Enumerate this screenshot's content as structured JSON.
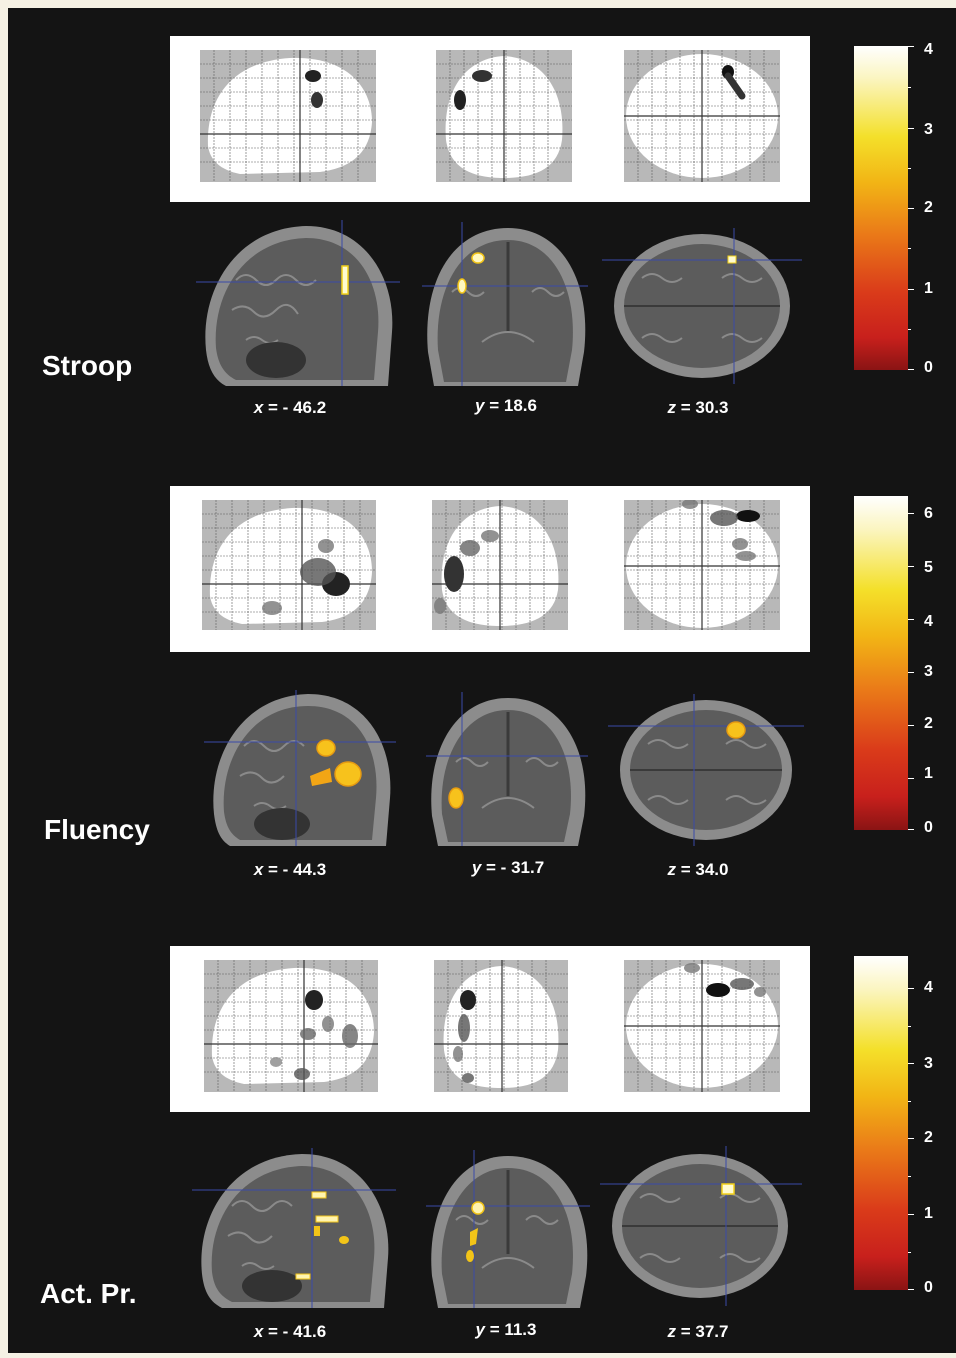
{
  "panels": [
    {
      "label": "Stroop",
      "coords": [
        {
          "axis": "x",
          "value": "= - 46.2"
        },
        {
          "axis": "y",
          "value": "= 18.6"
        },
        {
          "axis": "z",
          "value": "= 30.3"
        }
      ],
      "colorbar_ticks": [
        "4",
        "3",
        "2",
        "1",
        "0"
      ]
    },
    {
      "label": "Fluency",
      "coords": [
        {
          "axis": "x",
          "value": "= - 44.3"
        },
        {
          "axis": "y",
          "value": "= - 31.7"
        },
        {
          "axis": "z",
          "value": "= 34.0"
        }
      ],
      "colorbar_ticks": [
        "6",
        "5",
        "4",
        "3",
        "2",
        "1",
        "0"
      ]
    },
    {
      "label": "Act. Pr.",
      "coords": [
        {
          "axis": "x",
          "value": "= - 41.6"
        },
        {
          "axis": "y",
          "value": "= 11.3"
        },
        {
          "axis": "z",
          "value": "= 37.7"
        }
      ],
      "colorbar_ticks": [
        "4",
        "3",
        "2",
        "1",
        "0"
      ]
    }
  ],
  "colors": {
    "background": "#141414",
    "activation_low": "#f2a515",
    "activation_high": "#fffbd0",
    "crosshair": "#3a4aa8"
  }
}
